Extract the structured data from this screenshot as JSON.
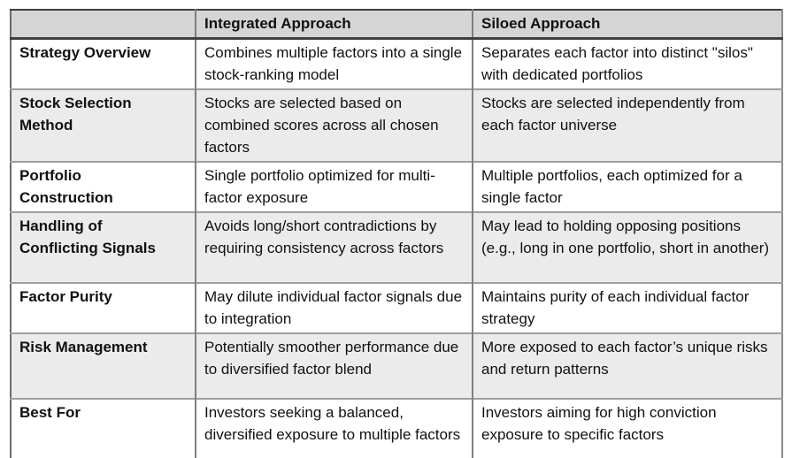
{
  "colors": {
    "header_bg": "#d5d5d5",
    "alt_row_bg": "#ebebeb",
    "grid_line": "#7f7f7f",
    "outer_border": "#404040",
    "text": "#111111"
  },
  "table": {
    "columns": [
      "",
      "Integrated Approach",
      "Siloed Approach"
    ],
    "rows": [
      {
        "label": "Strategy Overview",
        "integrated": "Combines multiple factors into a single stock-ranking model",
        "siloed": "Separates each factor into distinct \"silos\" with dedicated portfolios"
      },
      {
        "label": "Stock Selection Method",
        "integrated": "Stocks are selected based on combined scores across all chosen factors",
        "siloed": "Stocks are selected independently from each factor universe"
      },
      {
        "label": "Portfolio Construction",
        "integrated": "Single portfolio optimized for multi-factor exposure",
        "siloed": "Multiple portfolios, each optimized for a single factor"
      },
      {
        "label": "Handling of Conflicting Signals",
        "integrated": "Avoids long/short contradictions by requiring consistency across factors",
        "siloed": "May lead to holding opposing positions (e.g., long in one portfolio, short in another)"
      },
      {
        "label": "Factor Purity",
        "integrated": "May dilute individual factor signals due to integration",
        "siloed": "Maintains purity of each individual factor strategy"
      },
      {
        "label": "Risk Management",
        "integrated": "Potentially smoother performance due to diversified factor blend",
        "siloed": "More exposed to each factor’s unique risks and return patterns"
      },
      {
        "label": "Best For",
        "integrated": "Investors seeking a balanced, diversified exposure to multiple factors",
        "siloed": "Investors aiming for high conviction exposure to specific factors"
      }
    ]
  }
}
